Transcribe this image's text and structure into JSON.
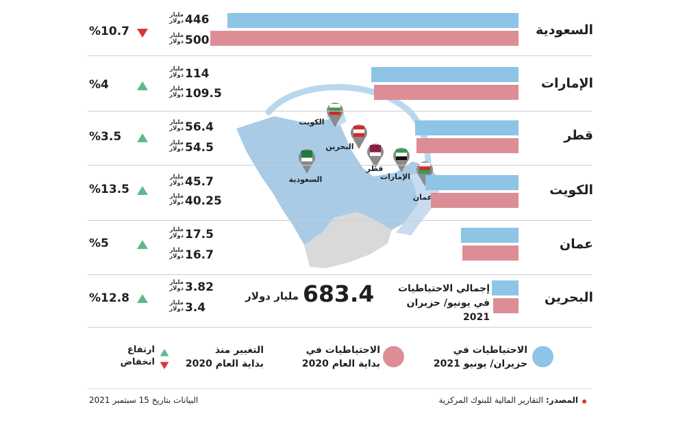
{
  "chart_data": {
    "type": "bar",
    "orientation": "horizontal",
    "categories": [
      "السعودية",
      "الإمارات",
      "قطر",
      "الكويت",
      "عمان",
      "البحرين"
    ],
    "series": [
      {
        "name": "الاحتياطيات في حزيران/ يونيو 2021",
        "color": "#8ec4e6",
        "values": [
          446,
          114,
          56.4,
          45.7,
          17.5,
          3.82
        ]
      },
      {
        "name": "الاحتياطيات في بداية العام 2020",
        "color": "#dd8d95",
        "values": [
          500,
          109.5,
          54.5,
          40.25,
          16.7,
          3.4
        ]
      }
    ],
    "value_labels_a": [
      "446",
      "114",
      "56.4",
      "45.7",
      "17.5",
      "3.82"
    ],
    "value_labels_b": [
      "500",
      "109.5",
      "54.5",
      "40.25",
      "16.7",
      "3.4"
    ],
    "unit_label": "مليار دولار",
    "change_labels": [
      "%10.7",
      "%4",
      "%3.5",
      "%13.5",
      "%5",
      "%12.8"
    ],
    "change_direction": [
      "down",
      "up",
      "up",
      "up",
      "up",
      "up"
    ],
    "total_value": "683.4",
    "total_unit": "مليار دولار",
    "total_label_line1": "إجمالي الاحتياطيات",
    "total_label_line2": "في يونيو/ حزيران 2021",
    "map_labels": [
      "الكويت",
      "البحرين",
      "قطر",
      "الإمارات",
      "عمان",
      "السعودية"
    ]
  },
  "legend": {
    "current_line1": "الاحتياطيات في",
    "current_line2": "حزيران/ يونيو 2021",
    "previous_line1": "الاحتياطيات في",
    "previous_line2": "بداية العام 2020",
    "change_line1": "التغيير منذ",
    "change_line2": "بداية العام 2020",
    "up_label": "ارتفاع",
    "down_label": "انخفاض"
  },
  "footer": {
    "source_label": "المصدر:",
    "source_text": "التقارير المالية للبنوك المركزية",
    "date_text": "البيانات بتاريخ 15 سبتمبر 2021"
  },
  "colors": {
    "current": "#8ec4e6",
    "previous": "#dd8d95",
    "up": "#5fb88a",
    "down": "#d9343a",
    "map": "#a9cbe6",
    "yemen": "#d9d9d9"
  }
}
